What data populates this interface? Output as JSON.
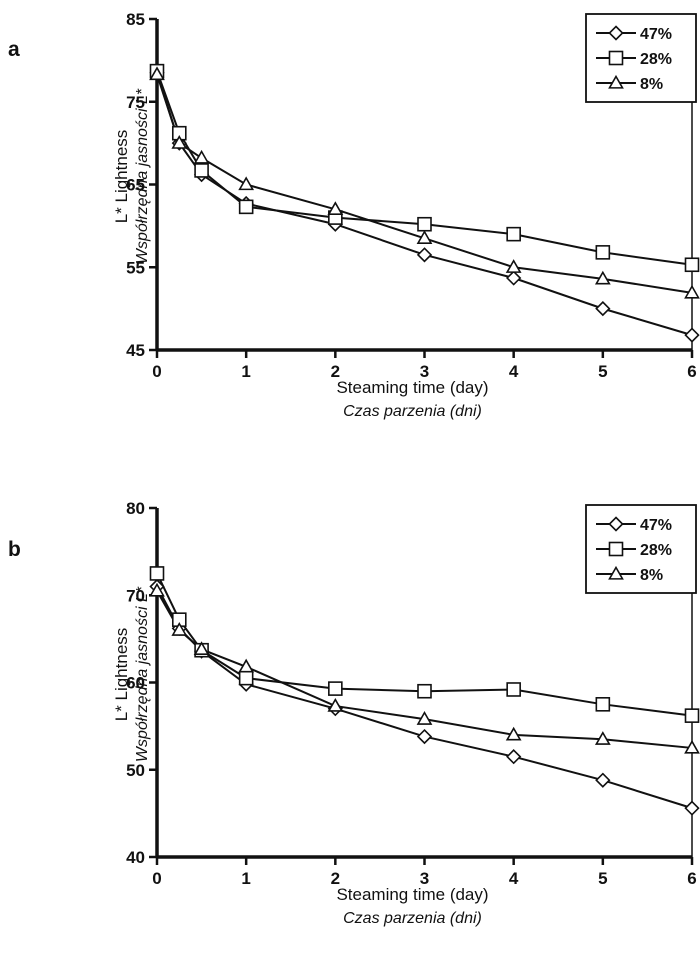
{
  "chart_data": [
    {
      "type": "line",
      "panel_label": "a",
      "x": [
        0,
        0.25,
        0.5,
        1,
        2,
        3,
        4,
        5,
        6
      ],
      "xlim": [
        0,
        6
      ],
      "ylim": [
        45,
        85
      ],
      "xticks": [
        0,
        1,
        2,
        3,
        4,
        5,
        6
      ],
      "yticks": [
        45,
        55,
        65,
        75,
        85
      ],
      "xlabel": "Steaming time (day)",
      "xlabel2": "Czas parzenia (dni)",
      "ylabel": "L* Lightness",
      "ylabel2": "Współrzędna jasności L*",
      "legend_position": "top-right",
      "series": [
        {
          "name": "47%",
          "marker": "diamond",
          "values": [
            78.5,
            70.0,
            66.2,
            62.7,
            60.2,
            56.5,
            53.7,
            50.0,
            46.8
          ]
        },
        {
          "name": "28%",
          "marker": "square",
          "values": [
            78.7,
            71.2,
            66.7,
            62.3,
            61.0,
            60.2,
            59.0,
            56.8,
            55.3
          ]
        },
        {
          "name": "8%",
          "marker": "triangle",
          "values": [
            78.3,
            70.0,
            68.2,
            65.0,
            62.0,
            58.5,
            55.0,
            53.6,
            51.9
          ]
        }
      ]
    },
    {
      "type": "line",
      "panel_label": "b",
      "x": [
        0,
        0.25,
        0.5,
        1,
        2,
        3,
        4,
        5,
        6
      ],
      "xlim": [
        0,
        6
      ],
      "ylim": [
        40,
        80
      ],
      "xticks": [
        0,
        1,
        2,
        3,
        4,
        5,
        6
      ],
      "yticks": [
        40,
        50,
        60,
        70,
        80
      ],
      "xlabel": "Steaming time (day)",
      "xlabel2": "Czas parzenia (dni)",
      "ylabel": "L* Lightness",
      "ylabel2": "Współrzędna jasności L*",
      "legend_position": "top-right",
      "series": [
        {
          "name": "47%",
          "marker": "diamond",
          "values": [
            71.0,
            66.2,
            63.6,
            59.8,
            57.0,
            53.8,
            51.5,
            48.8,
            45.6
          ]
        },
        {
          "name": "28%",
          "marker": "square",
          "values": [
            72.5,
            67.2,
            63.7,
            60.5,
            59.3,
            59.0,
            59.2,
            57.5,
            56.2
          ]
        },
        {
          "name": "8%",
          "marker": "triangle",
          "values": [
            70.5,
            66.0,
            63.8,
            61.8,
            57.3,
            55.8,
            54.0,
            53.5,
            52.5
          ]
        }
      ]
    }
  ]
}
